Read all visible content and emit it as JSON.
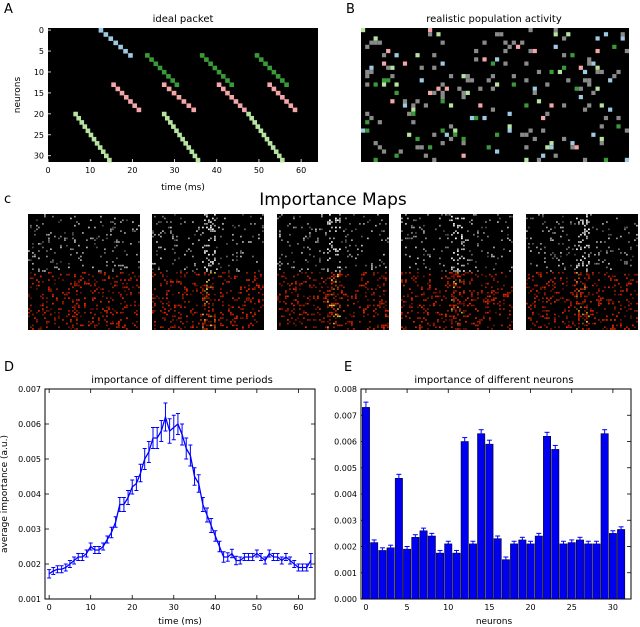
{
  "panel_letters": {
    "a": "A",
    "b": "B",
    "c": "c",
    "d": "D",
    "e": "E"
  },
  "importance_maps_title": "Importance Maps",
  "chart_data": [
    {
      "id": "A",
      "type": "heatmap",
      "title": "ideal packet",
      "xlabel": "time (ms)",
      "ylabel": "neurons",
      "xlim": [
        0,
        64
      ],
      "ylim": [
        32,
        0
      ],
      "xticks": [
        "0",
        "10",
        "20",
        "30",
        "40",
        "50",
        "60"
      ],
      "yticks": [
        "0",
        "5",
        "10",
        "15",
        "20",
        "25",
        "30"
      ],
      "background": "#000000",
      "diagonals": [
        {
          "color": "#9ec9e2",
          "t0": 12.5,
          "n0": 0,
          "t1": 19.5,
          "n1": 6
        },
        {
          "color": "#3a9a3a",
          "t0": 23.5,
          "n0": 6,
          "t1": 30.5,
          "n1": 13
        },
        {
          "color": "#3a9a3a",
          "t0": 36.5,
          "n0": 6,
          "t1": 43.5,
          "n1": 13
        },
        {
          "color": "#3a9a3a",
          "t0": 49.5,
          "n0": 6,
          "t1": 56.5,
          "n1": 13
        },
        {
          "color": "#f4a6a8",
          "t0": 15.5,
          "n0": 13,
          "t1": 21.5,
          "n1": 19
        },
        {
          "color": "#f4a6a8",
          "t0": 27.5,
          "n0": 13,
          "t1": 34.5,
          "n1": 19
        },
        {
          "color": "#f4a6a8",
          "t0": 40.5,
          "n0": 13,
          "t1": 46.5,
          "n1": 19
        },
        {
          "color": "#f4a6a8",
          "t0": 52.5,
          "n0": 13,
          "t1": 58.5,
          "n1": 19
        },
        {
          "color": "#b6e39f",
          "t0": 6.5,
          "n0": 20,
          "t1": 14.5,
          "n1": 31
        },
        {
          "color": "#b6e39f",
          "t0": 27.5,
          "n0": 20,
          "t1": 35.5,
          "n1": 31
        },
        {
          "color": "#b6e39f",
          "t0": 47.5,
          "n0": 20,
          "t1": 55.5,
          "n1": 31
        }
      ]
    },
    {
      "id": "B",
      "type": "heatmap",
      "title": "realistic population activity",
      "background": "#000000",
      "palette": [
        "#8a8a8a",
        "#8a8a8a",
        "#8a8a8a",
        "#8a8a8a",
        "#3a9a3a",
        "#f4a6a8",
        "#9ec9e2",
        "#b6e39f"
      ]
    },
    {
      "id": "C",
      "type": "heatmap",
      "title": "Importance Maps",
      "maps": 5,
      "top_color": "#ffffff",
      "bottom_color": "#ff2a00",
      "highlight_color": "#ffe34d"
    },
    {
      "id": "D",
      "type": "line",
      "title": "importance of different time periods",
      "xlabel": "time (ms)",
      "ylabel": "average importance (a.u.)",
      "xlim": [
        -1,
        64
      ],
      "ylim": [
        0.001,
        0.007
      ],
      "xticks": [
        "0",
        "10",
        "20",
        "30",
        "40",
        "50",
        "60"
      ],
      "yticks": [
        "0.001",
        "0.002",
        "0.003",
        "0.004",
        "0.005",
        "0.006",
        "0.007"
      ],
      "color": "#0000ff",
      "x": [
        0,
        1,
        2,
        3,
        4,
        5,
        6,
        7,
        8,
        9,
        10,
        11,
        12,
        13,
        14,
        15,
        16,
        17,
        18,
        19,
        20,
        21,
        22,
        23,
        24,
        25,
        26,
        27,
        28,
        29,
        30,
        31,
        32,
        33,
        34,
        35,
        36,
        37,
        38,
        39,
        40,
        41,
        42,
        43,
        44,
        45,
        46,
        47,
        48,
        49,
        50,
        51,
        52,
        53,
        54,
        55,
        56,
        57,
        58,
        59,
        60,
        61,
        62,
        63
      ],
      "y": [
        0.00172,
        0.0018,
        0.00185,
        0.00185,
        0.0019,
        0.002,
        0.0021,
        0.0022,
        0.0022,
        0.0023,
        0.0025,
        0.0024,
        0.0024,
        0.0025,
        0.0027,
        0.0029,
        0.0032,
        0.0037,
        0.0037,
        0.0039,
        0.0042,
        0.0043,
        0.0046,
        0.005,
        0.0052,
        0.0056,
        0.0056,
        0.0058,
        0.0062,
        0.0058,
        0.0059,
        0.006,
        0.0057,
        0.0053,
        0.0051,
        0.0045,
        0.0043,
        0.0037,
        0.0034,
        0.0031,
        0.0028,
        0.0025,
        0.0022,
        0.0022,
        0.0023,
        0.0021,
        0.0021,
        0.0022,
        0.0022,
        0.0022,
        0.0023,
        0.0022,
        0.0021,
        0.0023,
        0.0022,
        0.0022,
        0.0021,
        0.0022,
        0.0021,
        0.002,
        0.0019,
        0.0019,
        0.0019,
        0.0021
      ],
      "err": [
        0.00012,
        0.0001,
        0.0001,
        0.0001,
        0.0001,
        0.0001,
        0.0001,
        0.0001,
        0.0001,
        0.0001,
        0.0001,
        0.0001,
        0.0001,
        0.0001,
        0.0001,
        0.00015,
        0.00015,
        0.0002,
        0.0002,
        0.0002,
        0.0002,
        0.0002,
        0.00025,
        0.0003,
        0.0003,
        0.0003,
        0.0003,
        0.0003,
        0.0004,
        0.00035,
        0.00035,
        0.0003,
        0.0003,
        0.0003,
        0.0003,
        0.00025,
        0.00025,
        0.0002,
        0.0002,
        0.0002,
        0.00015,
        0.00015,
        0.00015,
        0.00012,
        0.00012,
        0.00012,
        0.0001,
        0.0001,
        0.0001,
        0.0001,
        0.0001,
        0.0001,
        0.0001,
        0.0001,
        0.0001,
        0.0001,
        0.0001,
        0.0001,
        0.0001,
        0.0001,
        0.0001,
        0.0001,
        0.0001,
        0.0002
      ]
    },
    {
      "id": "E",
      "type": "bar",
      "title": "importance of different neurons",
      "xlabel": "neurons",
      "ylabel": "",
      "xlim": [
        -0.6,
        32.2
      ],
      "ylim": [
        0,
        0.008
      ],
      "xticks": [
        "0",
        "5",
        "10",
        "15",
        "20",
        "25",
        "30"
      ],
      "yticks": [
        "0.000",
        "0.001",
        "0.002",
        "0.003",
        "0.004",
        "0.005",
        "0.006",
        "0.007",
        "0.008"
      ],
      "color": "#0000ee",
      "categories": [
        0,
        1,
        2,
        3,
        4,
        5,
        6,
        7,
        8,
        9,
        10,
        11,
        12,
        13,
        14,
        15,
        16,
        17,
        18,
        19,
        20,
        21,
        22,
        23,
        24,
        25,
        26,
        27,
        28,
        29,
        30,
        31
      ],
      "values": [
        0.0073,
        0.00215,
        0.00185,
        0.00195,
        0.0046,
        0.0019,
        0.00235,
        0.0026,
        0.0024,
        0.00175,
        0.0021,
        0.00175,
        0.006,
        0.0021,
        0.0063,
        0.0059,
        0.0023,
        0.0015,
        0.0021,
        0.00225,
        0.0021,
        0.0024,
        0.0062,
        0.0057,
        0.0021,
        0.00215,
        0.00225,
        0.0021,
        0.0021,
        0.0063,
        0.0025,
        0.00265
      ],
      "err": [
        0.0002,
        0.0001,
        0.0001,
        0.0001,
        0.00015,
        0.0001,
        0.0001,
        0.0001,
        0.0001,
        0.0001,
        0.0001,
        0.0001,
        0.00015,
        0.0001,
        0.00015,
        0.00015,
        0.0001,
        0.0001,
        0.0001,
        0.0001,
        0.0001,
        0.0001,
        0.00015,
        0.00015,
        0.0001,
        0.0001,
        0.0001,
        0.0001,
        0.0001,
        0.00015,
        0.0001,
        0.0001
      ]
    }
  ]
}
